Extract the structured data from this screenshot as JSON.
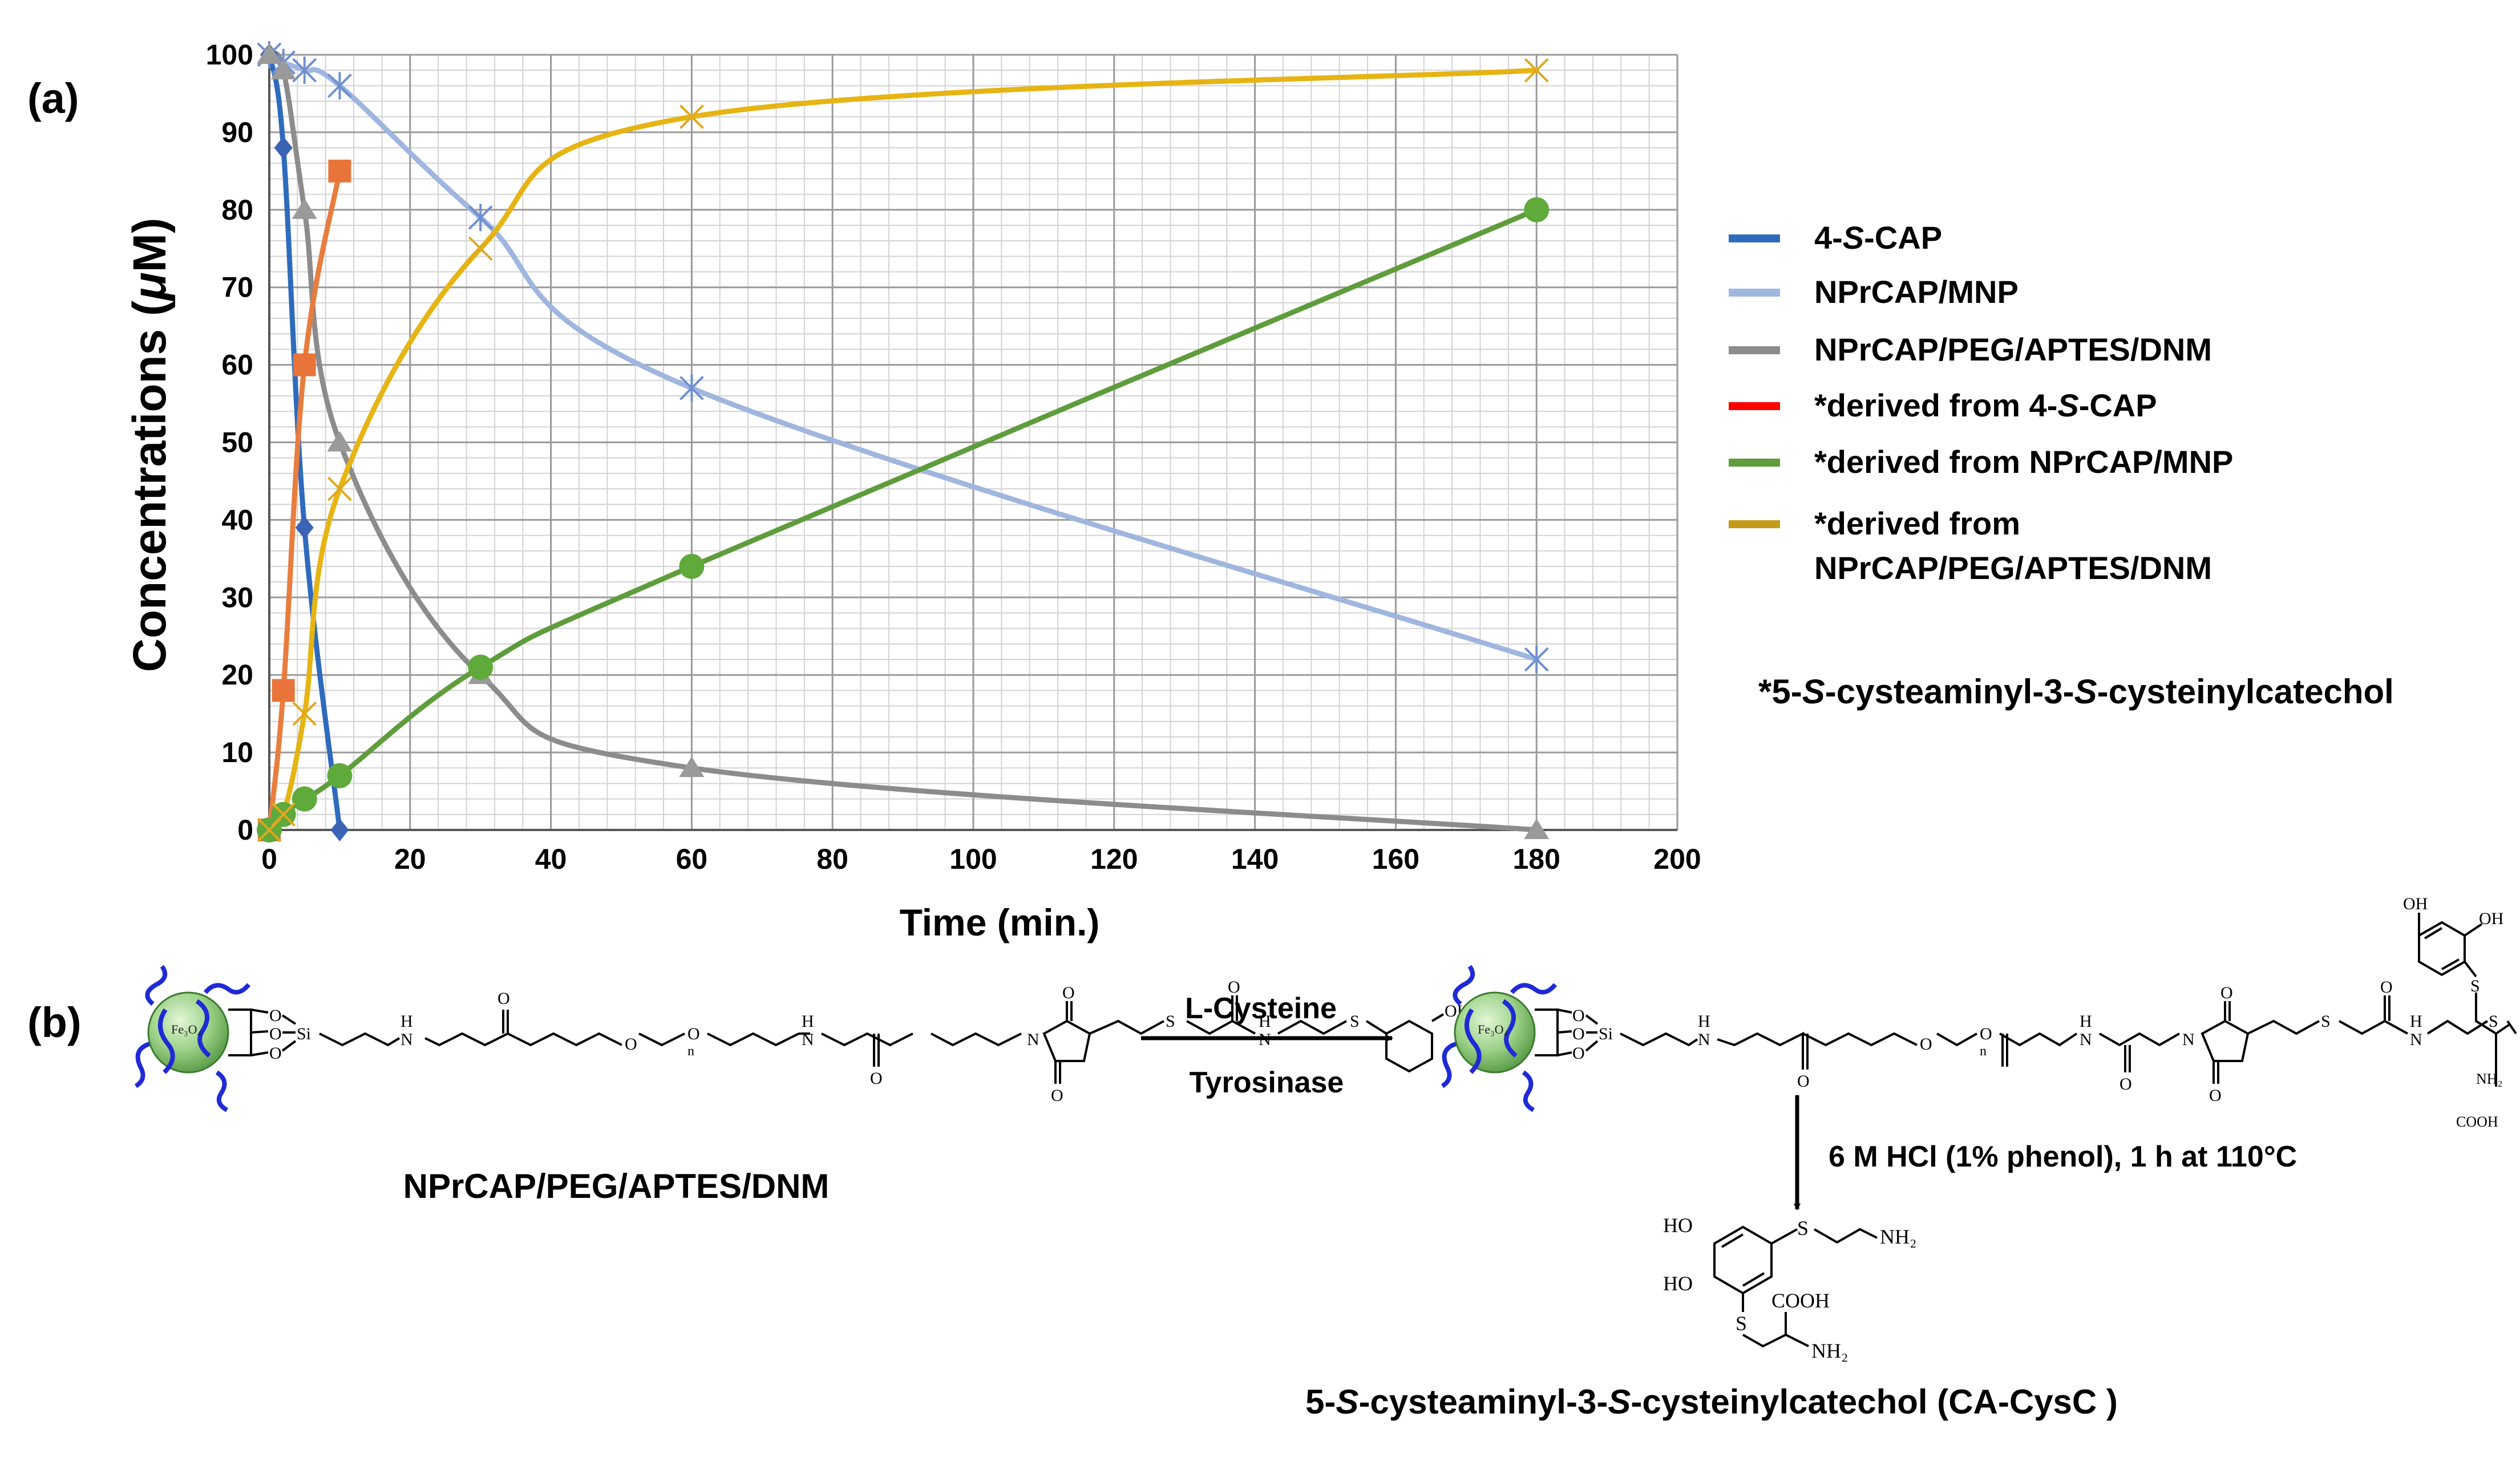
{
  "panel_a": {
    "label": "(a)",
    "footnote": "*5-S-cysteaminyl-3-S-cysteinylcatechol",
    "footnote_parts": [
      "*5-",
      "S",
      "-cysteaminyl-3-",
      "S",
      "-cysteinylcatechol"
    ]
  },
  "chart_data": {
    "type": "line",
    "xlabel": "Time (min.)",
    "ylabel": "Concentrations (μM)",
    "ylabel_parts": [
      "Concentrations (",
      "μ",
      "M)"
    ],
    "xlim": [
      0,
      200
    ],
    "ylim": [
      0,
      100
    ],
    "x_ticks": [
      "0",
      "20",
      "40",
      "60",
      "80",
      "100",
      "120",
      "140",
      "160",
      "180",
      "200"
    ],
    "y_ticks": [
      "0",
      "10",
      "20",
      "30",
      "40",
      "50",
      "60",
      "70",
      "80",
      "90",
      "100"
    ],
    "grid": true,
    "minor_grid": true,
    "legend_position": "right",
    "series": [
      {
        "name": "4-S-CAP",
        "label_parts": [
          "4-",
          "S",
          "-CAP"
        ],
        "line_color": "#2e6bbd",
        "marker_color": "#3a63b5",
        "marker": "diamond",
        "x": [
          0,
          2,
          5,
          10
        ],
        "y": [
          100,
          88,
          39,
          0
        ]
      },
      {
        "name": "NPrCAP/MNP",
        "label_parts": [
          "NPrCAP/MNP"
        ],
        "line_color": "#9fb6df",
        "marker_color": "#6f8fcf",
        "marker": "asterisk",
        "x": [
          0,
          2,
          5,
          10,
          30,
          60,
          180
        ],
        "y": [
          100,
          99,
          98,
          96,
          79,
          57,
          22
        ]
      },
      {
        "name": "NPrCAP/PEG/APTES/DNM",
        "label_parts": [
          "NPrCAP/PEG/APTES/DNM"
        ],
        "line_color": "#8c8c8c",
        "marker_color": "#9a9a9a",
        "marker": "triangle",
        "x": [
          0,
          2,
          5,
          10,
          30,
          60,
          180
        ],
        "y": [
          100,
          98,
          80,
          50,
          20,
          8,
          0
        ]
      },
      {
        "name": "*derived from 4-S-CAP",
        "label_parts": [
          "*derived from 4-",
          "S",
          "-CAP"
        ],
        "line_color": "#e87d3e",
        "legend_color": "#ff0000",
        "marker_color": "#e8743a",
        "marker": "square",
        "x": [
          0,
          2,
          5,
          10
        ],
        "y": [
          0,
          18,
          60,
          85
        ]
      },
      {
        "name": "*derived from NPrCAP/MNP",
        "label_parts": [
          "*derived from NPrCAP/MNP"
        ],
        "line_color": "#5e9c3c",
        "marker_color": "#5faa3a",
        "marker": "circle",
        "x": [
          0,
          2,
          5,
          10,
          30,
          60,
          180
        ],
        "y": [
          0,
          2,
          4,
          7,
          21,
          34,
          80
        ]
      },
      {
        "name": "*derived from NPrCAP/PEG/APTES/DNM",
        "label_parts": [
          "*derived from",
          "NPrCAP/PEG/APTES/DNM"
        ],
        "line_color": "#e6b413",
        "legend_color": "#c49a1a",
        "marker_color": "#e0a821",
        "marker": "x",
        "x": [
          0,
          2,
          5,
          10,
          30,
          60,
          180
        ],
        "y": [
          0,
          2,
          15,
          44,
          75,
          92,
          98
        ]
      }
    ]
  },
  "panel_b": {
    "label": "(b)",
    "reagent_top": "L-Cysteine",
    "reagent_bottom": "Tyrosinase",
    "start_name": "NPrCAP/PEG/APTES/DNM",
    "hydrolysis": "6 M HCl (1% phenol), 1 h at 110°C",
    "product_name": "5-S-cysteaminyl-3-S-cysteinylcatechol (CA-CysC )",
    "product_parts": [
      "5-",
      "S",
      "-cysteaminyl-3-",
      "S",
      "-cysteinylcatechol (CA-CysC )"
    ],
    "atoms": {
      "fe3o4": "Fe₃O₄",
      "si": "Si",
      "o": "O",
      "n": "N",
      "h": "H",
      "s": "S",
      "sub_n": "n",
      "oh": "OH",
      "ho": "HO",
      "nh2": "NH₂",
      "cooh": "COOH"
    }
  }
}
